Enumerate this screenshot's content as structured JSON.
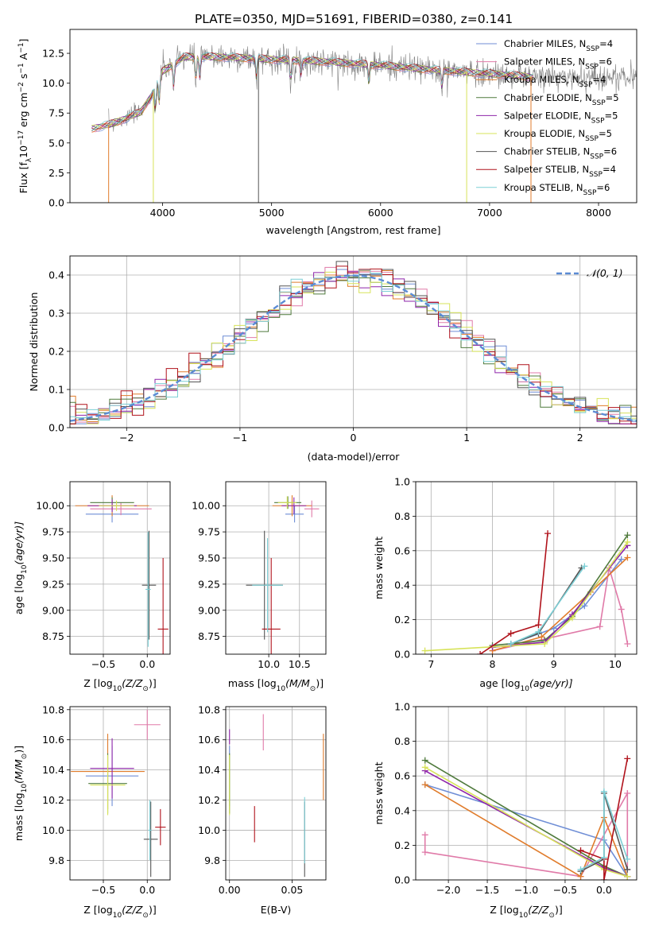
{
  "title": "PLATE=0350, MJD=51691, FIBERID=0380, z=0.141",
  "colors": {
    "Chabrier MILES": "#6f8ed6",
    "Salpeter MILES": "#e07aa8",
    "Kroupa MILES": "#e07c2c",
    "Chabrier ELODIE": "#4f7a3c",
    "Salpeter ELODIE": "#8e24aa",
    "Kroupa ELODIE": "#d7e35a",
    "Chabrier STELIB": "#555555",
    "Salpeter STELIB": "#b0121b",
    "Kroupa STELIB": "#7ccfd6",
    "data": "#808080",
    "normal": "#5b8bd4"
  },
  "chart_data": [
    {
      "id": "spectrum",
      "type": "line",
      "title": "PLATE=0350, MJD=51691, FIBERID=0380, z=0.141",
      "xlabel": "wavelength [Angstrom, rest frame]",
      "ylabel_main": "Flux [f",
      "ylabel_sub": "λ",
      "ylabel_rest": "10",
      "ylabel_exp": "−17",
      "ylabel_tail": " erg cm",
      "ylabel_tail_exp": "−2",
      "ylabel_tail2": " s",
      "ylabel_tail2_exp": "−1",
      "ylabel_tail3": " A",
      "ylabel_tail3_exp": "−1",
      "ylabel_end": "]",
      "xlim": [
        3150,
        8350
      ],
      "ylim": [
        0,
        14.5
      ],
      "xticks": [
        4000,
        5000,
        6000,
        7000,
        8000
      ],
      "yticks": [
        0.0,
        2.5,
        5.0,
        7.5,
        10.0,
        12.5
      ],
      "legend_loc": "upper right",
      "legend": [
        {
          "name": "Chabrier MILES",
          "nssp": "4"
        },
        {
          "name": "Salpeter MILES",
          "nssp": "6"
        },
        {
          "name": "Kroupa MILES",
          "nssp": "4"
        },
        {
          "name": "Chabrier ELODIE",
          "nssp": "5"
        },
        {
          "name": "Salpeter ELODIE",
          "nssp": "5"
        },
        {
          "name": "Kroupa ELODIE",
          "nssp": "5"
        },
        {
          "name": "Chabrier STELIB",
          "nssp": "6"
        },
        {
          "name": "Salpeter STELIB",
          "nssp": "4"
        },
        {
          "name": "Kroupa STELIB",
          "nssp": "6"
        }
      ],
      "nssp_label": "N",
      "nssp_sub": "SSP",
      "continuum": {
        "x": [
          3350,
          3500,
          3650,
          3800,
          3900,
          4000,
          4200,
          4500,
          5000,
          5500,
          6000,
          6500,
          7000,
          7300,
          7400
        ],
        "y": [
          6.2,
          6.5,
          7.0,
          7.6,
          9.0,
          11.0,
          12.2,
          12.2,
          12.0,
          11.8,
          11.5,
          11.1,
          10.8,
          10.6,
          10.5
        ]
      }
    },
    {
      "id": "residuals",
      "type": "step",
      "xlabel": "(data-model)/error",
      "ylabel": "Normed distribution",
      "xlim": [
        -2.5,
        2.5
      ],
      "ylim": [
        0,
        0.45
      ],
      "xticks": [
        -2,
        -1,
        0,
        1,
        2
      ],
      "yticks": [
        0.0,
        0.1,
        0.2,
        0.3,
        0.4
      ],
      "grid": true,
      "legend_loc": "upper right",
      "legend": [
        "𝒩(0, 1)"
      ],
      "bin_width": 0.1
    },
    {
      "id": "age-Z",
      "type": "errorbar",
      "xlabel": "Z [log",
      "xlabel_sub": "10",
      "xlabel_tail": "(Z/Z",
      "xlabel_sun": "⊙",
      "xlabel_end": ")]",
      "ylabel": "age  [log",
      "ylabel_sub": "10",
      "ylabel_tail": "(age/yr)]",
      "xlim": [
        -0.88,
        0.26
      ],
      "ylim": [
        8.58,
        10.23
      ],
      "xticks": [
        -0.5,
        0.0
      ],
      "yticks": [
        8.75,
        9.0,
        9.25,
        9.5,
        9.75,
        10.0
      ],
      "grid": true,
      "points": [
        {
          "model": "Chabrier MILES",
          "x": -0.4,
          "y": 9.92,
          "xerr": 0.3,
          "yerr": 0.08
        },
        {
          "model": "Salpeter MILES",
          "x": -0.3,
          "y": 9.97,
          "xerr": 0.35,
          "yerr": 0.06
        },
        {
          "model": "Kroupa MILES",
          "x": -0.4,
          "y": 10.0,
          "xerr": 0.42,
          "yerr": 0.1
        },
        {
          "model": "Chabrier ELODIE",
          "x": -0.4,
          "y": 10.03,
          "xerr": 0.25,
          "yerr": 0.05
        },
        {
          "model": "Salpeter ELODIE",
          "x": -0.4,
          "y": 10.0,
          "xerr": 0.28,
          "yerr": 0.06
        },
        {
          "model": "Kroupa ELODIE",
          "x": -0.35,
          "y": 10.0,
          "xerr": 0.2,
          "yerr": 0.05
        },
        {
          "model": "Chabrier STELIB",
          "x": 0.02,
          "y": 9.24,
          "xerr": 0.08,
          "yerr": 0.52
        },
        {
          "model": "Salpeter STELIB",
          "x": 0.18,
          "y": 8.82,
          "xerr": 0.06,
          "yerr": 0.68
        },
        {
          "model": "Kroupa STELIB",
          "x": 0.01,
          "y": 9.2,
          "xerr": 0.03,
          "yerr": 0.55
        }
      ]
    },
    {
      "id": "age-mass",
      "type": "errorbar",
      "xlabel": "mass [log",
      "xlabel_sub": "10",
      "xlabel_tail": "(M/M",
      "xlabel_sun": "⊙",
      "xlabel_end": ")]",
      "xlim": [
        9.3,
        10.93
      ],
      "ylim": [
        8.58,
        10.23
      ],
      "xticks": [
        10.0,
        10.5
      ],
      "yticks": [
        8.75,
        9.0,
        9.25,
        9.5,
        9.75,
        10.0
      ],
      "grid": true,
      "points": [
        {
          "model": "Chabrier MILES",
          "x": 10.42,
          "y": 9.92,
          "xerr": 0.15,
          "yerr": 0.08
        },
        {
          "model": "Salpeter MILES",
          "x": 10.7,
          "y": 9.97,
          "xerr": 0.12,
          "yerr": 0.08
        },
        {
          "model": "Kroupa MILES",
          "x": 10.38,
          "y": 10.0,
          "xerr": 0.32,
          "yerr": 0.1
        },
        {
          "model": "Chabrier ELODIE",
          "x": 10.31,
          "y": 10.03,
          "xerr": 0.22,
          "yerr": 0.06
        },
        {
          "model": "Salpeter ELODIE",
          "x": 10.41,
          "y": 10.0,
          "xerr": 0.2,
          "yerr": 0.08
        },
        {
          "model": "Kroupa ELODIE",
          "x": 10.3,
          "y": 10.03,
          "xerr": 0.15,
          "yerr": 0.06
        },
        {
          "model": "Chabrier STELIB",
          "x": 9.93,
          "y": 9.24,
          "xerr": 0.3,
          "yerr": 0.52
        },
        {
          "model": "Salpeter STELIB",
          "x": 10.04,
          "y": 8.82,
          "xerr": 0.15,
          "yerr": 0.68
        },
        {
          "model": "Kroupa STELIB",
          "x": 9.98,
          "y": 9.24,
          "xerr": 0.25,
          "yerr": 0.45
        }
      ]
    },
    {
      "id": "mass-Z",
      "type": "errorbar",
      "xlabel": "Z [log",
      "xlabel_sub": "10",
      "xlabel_tail": "(Z/Z",
      "xlabel_sun": "⊙",
      "xlabel_end": ")]",
      "ylabel": "mass [log",
      "ylabel_sub": "10",
      "ylabel_tail": "(M/M",
      "ylabel_sun": "⊙",
      "ylabel_end": ")]",
      "xlim": [
        -0.88,
        0.26
      ],
      "ylim": [
        9.67,
        10.82
      ],
      "xticks": [
        -0.5,
        0.0
      ],
      "yticks": [
        9.8,
        10.0,
        10.2,
        10.4,
        10.6,
        10.8
      ],
      "grid": true,
      "points": [
        {
          "model": "Chabrier MILES",
          "x": -0.4,
          "y": 10.36,
          "xerr": 0.3,
          "yerr": 0.2
        },
        {
          "model": "Salpeter MILES",
          "x": 0.0,
          "y": 10.7,
          "xerr": 0.15,
          "yerr": 0.1
        },
        {
          "model": "Kroupa MILES",
          "x": -0.45,
          "y": 10.39,
          "xerr": 0.42,
          "yerr": 0.25
        },
        {
          "model": "Chabrier ELODIE",
          "x": -0.45,
          "y": 10.31,
          "xerr": 0.22,
          "yerr": 0.2
        },
        {
          "model": "Salpeter ELODIE",
          "x": -0.4,
          "y": 10.41,
          "xerr": 0.25,
          "yerr": 0.2
        },
        {
          "model": "Kroupa ELODIE",
          "x": -0.45,
          "y": 10.3,
          "xerr": 0.2,
          "yerr": 0.2
        },
        {
          "model": "Chabrier STELIB",
          "x": 0.04,
          "y": 9.94,
          "xerr": 0.08,
          "yerr": 0.25
        },
        {
          "model": "Salpeter STELIB",
          "x": 0.15,
          "y": 10.02,
          "xerr": 0.06,
          "yerr": 0.12
        },
        {
          "model": "Kroupa STELIB",
          "x": 0.03,
          "y": 10.0,
          "xerr": 0.02,
          "yerr": 0.2
        }
      ]
    },
    {
      "id": "mass-EBV",
      "type": "errorbar",
      "xlabel": "E(B-V)",
      "xlim": [
        -0.003,
        0.077
      ],
      "ylim": [
        9.67,
        10.82
      ],
      "xticks": [
        0.0,
        0.05
      ],
      "yticks": [
        9.8,
        10.0,
        10.2,
        10.4,
        10.6,
        10.8
      ],
      "grid": true,
      "points": [
        {
          "model": "Chabrier MILES",
          "x": 0.0,
          "y": 10.36,
          "xerr": 0,
          "yerr": 0.2
        },
        {
          "model": "Salpeter MILES",
          "x": 0.027,
          "y": 10.65,
          "xerr": 0,
          "yerr": 0.12
        },
        {
          "model": "Kroupa MILES",
          "x": 0.075,
          "y": 10.42,
          "xerr": 0,
          "yerr": 0.22
        },
        {
          "model": "Chabrier ELODIE",
          "x": 0.0,
          "y": 10.31,
          "xerr": 0,
          "yerr": 0.2
        },
        {
          "model": "Salpeter ELODIE",
          "x": 0.0,
          "y": 10.62,
          "xerr": 0,
          "yerr": 0.05
        },
        {
          "model": "Kroupa ELODIE",
          "x": 0.0,
          "y": 10.3,
          "xerr": 0,
          "yerr": 0.2
        },
        {
          "model": "Chabrier STELIB",
          "x": 0.06,
          "y": 9.94,
          "xerr": 0,
          "yerr": 0.25
        },
        {
          "model": "Salpeter STELIB",
          "x": 0.02,
          "y": 10.04,
          "xerr": 0,
          "yerr": 0.12
        },
        {
          "model": "Kroupa STELIB",
          "x": 0.06,
          "y": 10.0,
          "xerr": 0,
          "yerr": 0.22
        }
      ]
    },
    {
      "id": "weight-age",
      "type": "line",
      "xlabel": "age  [log",
      "xlabel_sub": "10",
      "xlabel_tail": "(age/yr)]",
      "ylabel": "mass weight",
      "xlim": [
        6.75,
        10.35
      ],
      "ylim": [
        0,
        1.0
      ],
      "xticks": [
        7,
        8,
        9,
        10
      ],
      "yticks": [
        0.0,
        0.2,
        0.4,
        0.6,
        0.8,
        1.0
      ],
      "grid": true,
      "series": [
        {
          "name": "Chabrier MILES",
          "x": [
            8.3,
            9.0,
            9.5,
            10.1
          ],
          "y": [
            0.06,
            0.15,
            0.28,
            0.55
          ]
        },
        {
          "name": "Salpeter MILES",
          "x": [
            8.0,
            9.75,
            9.9,
            10.1,
            10.2
          ],
          "y": [
            0.02,
            0.16,
            0.5,
            0.26,
            0.06
          ]
        },
        {
          "name": "Kroupa MILES",
          "x": [
            8.0,
            8.8,
            9.6,
            10.2
          ],
          "y": [
            0.02,
            0.1,
            0.36,
            0.56
          ]
        },
        {
          "name": "Chabrier ELODIE",
          "x": [
            8.0,
            8.85,
            9.3,
            10.2
          ],
          "y": [
            0.05,
            0.08,
            0.22,
            0.69
          ]
        },
        {
          "name": "Salpeter ELODIE",
          "x": [
            8.0,
            8.85,
            9.3,
            10.2
          ],
          "y": [
            0.04,
            0.07,
            0.23,
            0.63
          ]
        },
        {
          "name": "Kroupa ELODIE",
          "x": [
            6.9,
            8.85,
            9.3,
            10.2
          ],
          "y": [
            0.02,
            0.06,
            0.21,
            0.65
          ]
        },
        {
          "name": "Chabrier STELIB",
          "x": [
            8.3,
            8.75,
            9.45
          ],
          "y": [
            0.06,
            0.12,
            0.5
          ]
        },
        {
          "name": "Salpeter STELIB",
          "x": [
            7.8,
            8.3,
            8.75,
            8.9
          ],
          "y": [
            0.0,
            0.12,
            0.17,
            0.7
          ]
        },
        {
          "name": "Kroupa STELIB",
          "x": [
            8.3,
            8.75,
            9.5
          ],
          "y": [
            0.06,
            0.13,
            0.51
          ]
        }
      ]
    },
    {
      "id": "weight-Z",
      "type": "line",
      "xlabel": "Z [log",
      "xlabel_sub": "10",
      "xlabel_tail": "(Z/Z",
      "xlabel_sun": "⊙",
      "xlabel_end": ")]",
      "ylabel": "mass weight",
      "xlim": [
        -2.42,
        0.42
      ],
      "ylim": [
        0,
        1.0
      ],
      "xticks": [
        -2.0,
        -1.5,
        -1.0,
        -0.5,
        0.0
      ],
      "yticks": [
        0.0,
        0.2,
        0.4,
        0.6,
        0.8,
        1.0
      ],
      "grid": true,
      "series": [
        {
          "name": "Chabrier MILES",
          "x": [
            -2.3,
            0.0,
            0.3
          ],
          "y": [
            0.55,
            0.23,
            0.02
          ]
        },
        {
          "name": "Salpeter MILES",
          "x": [
            -2.3,
            -2.3,
            -0.3,
            0.3,
            0.3
          ],
          "y": [
            0.26,
            0.16,
            0.02,
            0.5,
            0.06
          ]
        },
        {
          "name": "Kroupa MILES",
          "x": [
            -2.3,
            -0.3,
            0.0,
            0.3
          ],
          "y": [
            0.55,
            0.02,
            0.36,
            0.02
          ]
        },
        {
          "name": "Chabrier ELODIE",
          "x": [
            -2.3,
            0.0,
            0.3
          ],
          "y": [
            0.69,
            0.08,
            0.02
          ]
        },
        {
          "name": "Salpeter ELODIE",
          "x": [
            -2.3,
            0.0,
            0.3
          ],
          "y": [
            0.63,
            0.07,
            0.02
          ]
        },
        {
          "name": "Kroupa ELODIE",
          "x": [
            -2.3,
            0.0,
            0.3
          ],
          "y": [
            0.65,
            0.06,
            0.02
          ]
        },
        {
          "name": "Chabrier STELIB",
          "x": [
            -0.3,
            0.0,
            0.0,
            0.3
          ],
          "y": [
            0.05,
            0.12,
            0.5,
            0.06
          ]
        },
        {
          "name": "Salpeter STELIB",
          "x": [
            -0.3,
            0.0,
            0.0,
            0.3
          ],
          "y": [
            0.17,
            0.12,
            0.0,
            0.7
          ]
        },
        {
          "name": "Kroupa STELIB",
          "x": [
            -0.3,
            0.0,
            0.0,
            0.3
          ],
          "y": [
            0.06,
            0.13,
            0.51,
            0.12
          ]
        }
      ]
    }
  ]
}
